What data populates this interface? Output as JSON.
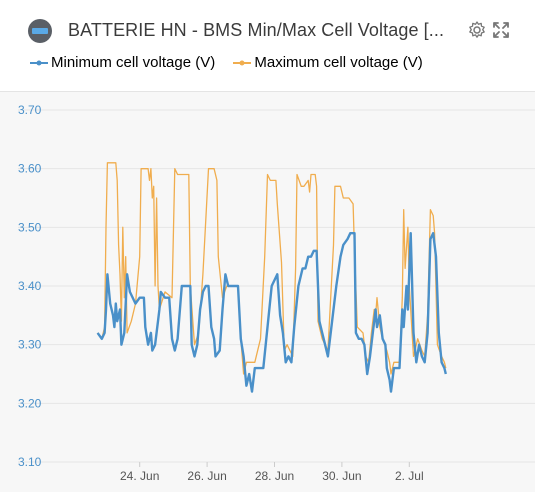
{
  "widget": {
    "title": "BATTERIE HN - BMS Min/Max Cell Voltage [...",
    "icons": {
      "device": "battery-icon",
      "settings": "gear-icon",
      "expand": "expand-icon"
    }
  },
  "colors": {
    "min_series": "#4a90c9",
    "max_series": "#f0ad4e",
    "y_tick_text": "#4a90c9",
    "x_tick_text": "#555555",
    "grid": "#e6e6e6"
  },
  "chart_data": {
    "type": "line",
    "ylim": [
      3.1,
      3.7
    ],
    "y_ticks": [
      "3.70",
      "3.60",
      "3.50",
      "3.40",
      "3.30",
      "3.20",
      "3.10"
    ],
    "xlim": [
      "2023-06-23T00:00",
      "2023-07-03T00:00"
    ],
    "x_ticks": [
      {
        "label": "24. Jun",
        "t": "2023-06-24T00:00"
      },
      {
        "label": "26. Jun",
        "t": "2023-06-26T00:00"
      },
      {
        "label": "28. Jun",
        "t": "2023-06-28T00:00"
      },
      {
        "label": "30. Jun",
        "t": "2023-06-30T00:00"
      },
      {
        "label": "2. Jul",
        "t": "2023-07-02T00:00"
      }
    ],
    "grid": true,
    "legend_position": "top-left",
    "series": [
      {
        "name": "Minimum cell voltage (V)",
        "points": [
          [
            "2023-06-22T18:00",
            3.32
          ],
          [
            "2023-06-22T21:00",
            3.31
          ],
          [
            "2023-06-22T23:00",
            3.32
          ],
          [
            "2023-06-23T00:00",
            3.36
          ],
          [
            "2023-06-23T01:00",
            3.42
          ],
          [
            "2023-06-23T03:00",
            3.37
          ],
          [
            "2023-06-23T05:00",
            3.35
          ],
          [
            "2023-06-23T06:00",
            3.33
          ],
          [
            "2023-06-23T07:00",
            3.37
          ],
          [
            "2023-06-23T08:00",
            3.34
          ],
          [
            "2023-06-23T10:00",
            3.36
          ],
          [
            "2023-06-23T11:00",
            3.3
          ],
          [
            "2023-06-23T13:00",
            3.32
          ],
          [
            "2023-06-23T15:00",
            3.42
          ],
          [
            "2023-06-23T17:00",
            3.39
          ],
          [
            "2023-06-23T21:00",
            3.37
          ],
          [
            "2023-06-24T00:00",
            3.38
          ],
          [
            "2023-06-24T03:00",
            3.38
          ],
          [
            "2023-06-24T04:00",
            3.33
          ],
          [
            "2023-06-24T06:00",
            3.3
          ],
          [
            "2023-06-24T08:00",
            3.32
          ],
          [
            "2023-06-24T09:00",
            3.29
          ],
          [
            "2023-06-24T11:00",
            3.3
          ],
          [
            "2023-06-24T13:00",
            3.34
          ],
          [
            "2023-06-24T14:00",
            3.36
          ],
          [
            "2023-06-24T15:00",
            3.39
          ],
          [
            "2023-06-24T18:00",
            3.38
          ],
          [
            "2023-06-24T21:00",
            3.38
          ],
          [
            "2023-06-24T23:00",
            3.31
          ],
          [
            "2023-06-25T01:00",
            3.29
          ],
          [
            "2023-06-25T03:00",
            3.31
          ],
          [
            "2023-06-25T05:00",
            3.37
          ],
          [
            "2023-06-25T06:00",
            3.4
          ],
          [
            "2023-06-25T12:00",
            3.4
          ],
          [
            "2023-06-25T13:00",
            3.3
          ],
          [
            "2023-06-25T15:00",
            3.28
          ],
          [
            "2023-06-25T17:00",
            3.3
          ],
          [
            "2023-06-25T19:00",
            3.36
          ],
          [
            "2023-06-25T21:00",
            3.39
          ],
          [
            "2023-06-25T23:00",
            3.4
          ],
          [
            "2023-06-26T01:00",
            3.4
          ],
          [
            "2023-06-26T03:00",
            3.33
          ],
          [
            "2023-06-26T05:00",
            3.31
          ],
          [
            "2023-06-26T06:00",
            3.28
          ],
          [
            "2023-06-26T09:00",
            3.29
          ],
          [
            "2023-06-26T11:00",
            3.36
          ],
          [
            "2023-06-26T13:00",
            3.42
          ],
          [
            "2023-06-26T15:00",
            3.4
          ],
          [
            "2023-06-26T22:00",
            3.4
          ],
          [
            "2023-06-27T00:00",
            3.31
          ],
          [
            "2023-06-27T02:00",
            3.28
          ],
          [
            "2023-06-27T04:00",
            3.23
          ],
          [
            "2023-06-27T06:00",
            3.25
          ],
          [
            "2023-06-27T08:00",
            3.22
          ],
          [
            "2023-06-27T10:00",
            3.26
          ],
          [
            "2023-06-27T16:00",
            3.26
          ],
          [
            "2023-06-27T19:00",
            3.33
          ],
          [
            "2023-06-27T22:00",
            3.4
          ],
          [
            "2023-06-28T00:00",
            3.41
          ],
          [
            "2023-06-28T02:00",
            3.42
          ],
          [
            "2023-06-28T04:00",
            3.35
          ],
          [
            "2023-06-28T06:00",
            3.32
          ],
          [
            "2023-06-28T08:00",
            3.27
          ],
          [
            "2023-06-28T10:00",
            3.28
          ],
          [
            "2023-06-28T12:00",
            3.27
          ],
          [
            "2023-06-28T14:00",
            3.33
          ],
          [
            "2023-06-28T17:00",
            3.4
          ],
          [
            "2023-06-28T20:00",
            3.43
          ],
          [
            "2023-06-28T22:00",
            3.43
          ],
          [
            "2023-06-29T00:00",
            3.45
          ],
          [
            "2023-06-29T02:00",
            3.45
          ],
          [
            "2023-06-29T04:00",
            3.46
          ],
          [
            "2023-06-29T06:00",
            3.46
          ],
          [
            "2023-06-29T08:00",
            3.34
          ],
          [
            "2023-06-29T10:00",
            3.32
          ],
          [
            "2023-06-29T12:00",
            3.3
          ],
          [
            "2023-06-29T14:00",
            3.28
          ],
          [
            "2023-06-29T17:00",
            3.34
          ],
          [
            "2023-06-29T20:00",
            3.4
          ],
          [
            "2023-06-29T23:00",
            3.45
          ],
          [
            "2023-06-30T01:00",
            3.47
          ],
          [
            "2023-06-30T04:00",
            3.48
          ],
          [
            "2023-06-30T06:00",
            3.49
          ],
          [
            "2023-06-30T09:00",
            3.49
          ],
          [
            "2023-06-30T10:00",
            3.32
          ],
          [
            "2023-06-30T12:00",
            3.31
          ],
          [
            "2023-06-30T14:00",
            3.31
          ],
          [
            "2023-06-30T16:00",
            3.3
          ],
          [
            "2023-06-30T18:00",
            3.25
          ],
          [
            "2023-06-30T20:00",
            3.28
          ],
          [
            "2023-06-30T22:00",
            3.32
          ],
          [
            "2023-07-01T00:00",
            3.36
          ],
          [
            "2023-07-01T01:00",
            3.33
          ],
          [
            "2023-07-01T03:00",
            3.35
          ],
          [
            "2023-07-01T05:00",
            3.31
          ],
          [
            "2023-07-01T07:00",
            3.3
          ],
          [
            "2023-07-01T08:00",
            3.26
          ],
          [
            "2023-07-01T10:00",
            3.24
          ],
          [
            "2023-07-01T11:00",
            3.22
          ],
          [
            "2023-07-01T13:00",
            3.26
          ],
          [
            "2023-07-01T17:00",
            3.26
          ],
          [
            "2023-07-01T19:00",
            3.36
          ],
          [
            "2023-07-01T20:00",
            3.33
          ],
          [
            "2023-07-01T22:00",
            3.4
          ],
          [
            "2023-07-01T23:00",
            3.36
          ],
          [
            "2023-07-02T01:00",
            3.49
          ],
          [
            "2023-07-02T03:00",
            3.32
          ],
          [
            "2023-07-02T05:00",
            3.27
          ],
          [
            "2023-07-02T07:00",
            3.3
          ],
          [
            "2023-07-02T09:00",
            3.28
          ],
          [
            "2023-07-02T11:00",
            3.27
          ],
          [
            "2023-07-02T13:00",
            3.32
          ],
          [
            "2023-07-02T15:00",
            3.48
          ],
          [
            "2023-07-02T17:00",
            3.49
          ],
          [
            "2023-07-02T19:00",
            3.45
          ],
          [
            "2023-07-02T21:00",
            3.32
          ],
          [
            "2023-07-02T23:00",
            3.27
          ],
          [
            "2023-07-03T01:00",
            3.26
          ],
          [
            "2023-07-03T02:00",
            3.25
          ]
        ]
      },
      {
        "name": "Maximum cell voltage (V)",
        "points": [
          [
            "2023-06-22T18:00",
            3.32
          ],
          [
            "2023-06-22T21:00",
            3.31
          ],
          [
            "2023-06-22T23:00",
            3.33
          ],
          [
            "2023-06-23T00:00",
            3.5
          ],
          [
            "2023-06-23T01:00",
            3.61
          ],
          [
            "2023-06-23T07:00",
            3.61
          ],
          [
            "2023-06-23T08:00",
            3.58
          ],
          [
            "2023-06-23T09:00",
            3.47
          ],
          [
            "2023-06-23T10:00",
            3.42
          ],
          [
            "2023-06-23T11:00",
            3.34
          ],
          [
            "2023-06-23T12:00",
            3.5
          ],
          [
            "2023-06-23T13:00",
            3.38
          ],
          [
            "2023-06-23T14:00",
            3.45
          ],
          [
            "2023-06-23T15:00",
            3.32
          ],
          [
            "2023-06-23T18:00",
            3.34
          ],
          [
            "2023-06-23T21:00",
            3.37
          ],
          [
            "2023-06-24T00:00",
            3.45
          ],
          [
            "2023-06-24T01:00",
            3.6
          ],
          [
            "2023-06-24T06:00",
            3.6
          ],
          [
            "2023-06-24T07:00",
            3.58
          ],
          [
            "2023-06-24T08:00",
            3.6
          ],
          [
            "2023-06-24T09:00",
            3.55
          ],
          [
            "2023-06-24T10:00",
            3.57
          ],
          [
            "2023-06-24T11:00",
            3.4
          ],
          [
            "2023-06-24T12:00",
            3.55
          ],
          [
            "2023-06-24T13:00",
            3.4
          ],
          [
            "2023-06-24T14:00",
            3.36
          ],
          [
            "2023-06-24T18:00",
            3.39
          ],
          [
            "2023-06-24T23:00",
            3.38
          ],
          [
            "2023-06-25T01:00",
            3.6
          ],
          [
            "2023-06-25T03:00",
            3.59
          ],
          [
            "2023-06-25T09:00",
            3.59
          ],
          [
            "2023-06-25T11:00",
            3.59
          ],
          [
            "2023-06-25T12:00",
            3.4
          ],
          [
            "2023-06-25T15:00",
            3.3
          ],
          [
            "2023-06-25T18:00",
            3.32
          ],
          [
            "2023-06-25T21:00",
            3.42
          ],
          [
            "2023-06-26T01:00",
            3.6
          ],
          [
            "2023-06-26T05:00",
            3.6
          ],
          [
            "2023-06-26T07:00",
            3.58
          ],
          [
            "2023-06-26T08:00",
            3.45
          ],
          [
            "2023-06-26T11:00",
            3.38
          ],
          [
            "2023-06-26T14:00",
            3.4
          ],
          [
            "2023-06-26T22:00",
            3.4
          ],
          [
            "2023-06-27T00:00",
            3.31
          ],
          [
            "2023-06-27T02:00",
            3.25
          ],
          [
            "2023-06-27T04:00",
            3.27
          ],
          [
            "2023-06-27T10:00",
            3.27
          ],
          [
            "2023-06-27T14:00",
            3.31
          ],
          [
            "2023-06-27T17:00",
            3.45
          ],
          [
            "2023-06-27T19:00",
            3.59
          ],
          [
            "2023-06-27T21:00",
            3.58
          ],
          [
            "2023-06-28T01:00",
            3.58
          ],
          [
            "2023-06-28T02:00",
            3.54
          ],
          [
            "2023-06-28T05:00",
            3.44
          ],
          [
            "2023-06-28T07:00",
            3.29
          ],
          [
            "2023-06-28T09:00",
            3.3
          ],
          [
            "2023-06-28T13:00",
            3.28
          ],
          [
            "2023-06-28T15:00",
            3.43
          ],
          [
            "2023-06-28T16:00",
            3.59
          ],
          [
            "2023-06-28T19:00",
            3.57
          ],
          [
            "2023-06-28T21:00",
            3.57
          ],
          [
            "2023-06-29T00:00",
            3.58
          ],
          [
            "2023-06-29T01:00",
            3.56
          ],
          [
            "2023-06-29T02:00",
            3.59
          ],
          [
            "2023-06-29T05:00",
            3.59
          ],
          [
            "2023-06-29T06:00",
            3.57
          ],
          [
            "2023-06-29T07:00",
            3.34
          ],
          [
            "2023-06-29T10:00",
            3.31
          ],
          [
            "2023-06-29T14:00",
            3.29
          ],
          [
            "2023-06-29T18:00",
            3.47
          ],
          [
            "2023-06-29T19:00",
            3.57
          ],
          [
            "2023-06-29T23:00",
            3.57
          ],
          [
            "2023-06-30T01:00",
            3.55
          ],
          [
            "2023-06-30T05:00",
            3.55
          ],
          [
            "2023-06-30T08:00",
            3.54
          ],
          [
            "2023-06-30T09:00",
            3.46
          ],
          [
            "2023-06-30T11:00",
            3.33
          ],
          [
            "2023-06-30T15:00",
            3.32
          ],
          [
            "2023-06-30T17:00",
            3.28
          ],
          [
            "2023-06-30T19:00",
            3.27
          ],
          [
            "2023-06-30T21:00",
            3.32
          ],
          [
            "2023-06-30T23:00",
            3.36
          ],
          [
            "2023-07-01T00:00",
            3.35
          ],
          [
            "2023-07-01T01:00",
            3.38
          ],
          [
            "2023-07-01T03:00",
            3.33
          ],
          [
            "2023-07-01T05:00",
            3.31
          ],
          [
            "2023-07-01T08:00",
            3.29
          ],
          [
            "2023-07-01T10:00",
            3.27
          ],
          [
            "2023-07-01T11:00",
            3.25
          ],
          [
            "2023-07-01T13:00",
            3.27
          ],
          [
            "2023-07-01T17:00",
            3.27
          ],
          [
            "2023-07-01T19:00",
            3.38
          ],
          [
            "2023-07-01T20:00",
            3.53
          ],
          [
            "2023-07-01T21:00",
            3.43
          ],
          [
            "2023-07-01T23:00",
            3.5
          ],
          [
            "2023-07-02T00:00",
            3.4
          ],
          [
            "2023-07-02T02:00",
            3.32
          ],
          [
            "2023-07-02T03:00",
            3.28
          ],
          [
            "2023-07-02T06:00",
            3.31
          ],
          [
            "2023-07-02T09:00",
            3.29
          ],
          [
            "2023-07-02T11:00",
            3.28
          ],
          [
            "2023-07-02T13:00",
            3.35
          ],
          [
            "2023-07-02T15:00",
            3.53
          ],
          [
            "2023-07-02T17:00",
            3.52
          ],
          [
            "2023-07-02T18:00",
            3.49
          ],
          [
            "2023-07-02T20:00",
            3.3
          ],
          [
            "2023-07-02T23:00",
            3.28
          ],
          [
            "2023-07-03T01:00",
            3.27
          ],
          [
            "2023-07-03T02:00",
            3.26
          ]
        ]
      }
    ]
  }
}
